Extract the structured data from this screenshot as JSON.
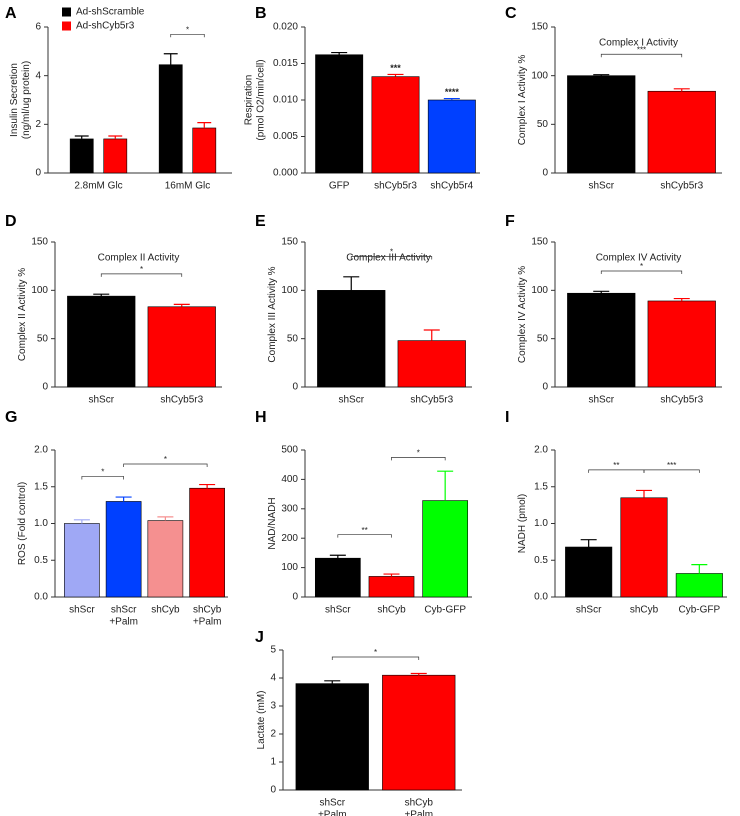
{
  "chart_data": [
    {
      "type": "bar",
      "panel": "A",
      "ylabel": [
        "Insulin Secretion",
        "(ng/ml/ug protein)"
      ],
      "categories": [
        "2.8mM Glc",
        "16mM Glc"
      ],
      "series": [
        {
          "name": "Ad-shScramble",
          "color": "#000000",
          "values": [
            1.4,
            4.45
          ],
          "errors": [
            0.12,
            0.45
          ]
        },
        {
          "name": "Ad-shCyb5r3",
          "color": "#ff0000",
          "values": [
            1.4,
            1.85
          ],
          "errors": [
            0.12,
            0.22
          ]
        }
      ],
      "ylim": [
        0,
        6
      ],
      "yticks": [
        0,
        2,
        4,
        6
      ],
      "legend": "upper left",
      "brackets": [
        {
          "between": [
            2,
            3
          ],
          "label": "*"
        }
      ]
    },
    {
      "type": "bar",
      "panel": "B",
      "ylabel": [
        "Respiration",
        "(pmol O2/min/cell)"
      ],
      "categories": [
        "GFP",
        "shCyb5r3",
        "shCyb5r4"
      ],
      "values": [
        0.0162,
        0.0132,
        0.01
      ],
      "errors": [
        0.0003,
        0.0003,
        0.0002
      ],
      "colors": [
        "#000000",
        "#ff0000",
        "#0040ff"
      ],
      "ylim": [
        0,
        0.02
      ],
      "yticks": [
        {
          "value": 0,
          "label": "0.000"
        },
        {
          "value": 0.005,
          "label": "0.005"
        },
        {
          "value": 0.01,
          "label": "0.010"
        },
        {
          "value": 0.015,
          "label": "0.015"
        },
        {
          "value": 0.02,
          "label": "0.020"
        }
      ],
      "bar_labels": [
        {
          "bar": 1,
          "label": "***"
        },
        {
          "bar": 2,
          "label": "****"
        }
      ]
    },
    {
      "type": "bar",
      "panel": "C",
      "title": "Complex I Activity",
      "ylabel": "Complex I Activity %",
      "categories": [
        "shScr",
        "shCyb5r3"
      ],
      "values": [
        100,
        84
      ],
      "errors": [
        1,
        2.5
      ],
      "colors": [
        "#000000",
        "#ff0000"
      ],
      "ylim": [
        0,
        150
      ],
      "yticks": [
        0,
        50,
        100,
        150
      ],
      "brackets": [
        {
          "between": [
            0,
            1
          ],
          "label": "***"
        }
      ]
    },
    {
      "type": "bar",
      "panel": "D",
      "title": "Complex II Activity",
      "ylabel": "Complex II Activity %",
      "categories": [
        "shScr",
        "shCyb5r3"
      ],
      "values": [
        94,
        83
      ],
      "errors": [
        2,
        2.5
      ],
      "colors": [
        "#000000",
        "#ff0000"
      ],
      "ylim": [
        0,
        150
      ],
      "yticks": [
        0,
        50,
        100,
        150
      ],
      "brackets": [
        {
          "between": [
            0,
            1
          ],
          "label": "*"
        }
      ]
    },
    {
      "type": "bar",
      "panel": "E",
      "title": "Complex III Activity",
      "ylabel": "Complex III Activity %",
      "categories": [
        "shScr",
        "shCyb5r3"
      ],
      "values": [
        100,
        48
      ],
      "errors": [
        14,
        11
      ],
      "colors": [
        "#000000",
        "#ff0000"
      ],
      "ylim": [
        0,
        150
      ],
      "yticks": [
        0,
        50,
        100,
        150
      ],
      "brackets": [
        {
          "between": [
            0,
            1
          ],
          "label": "*"
        }
      ]
    },
    {
      "type": "bar",
      "panel": "F",
      "title": "Complex IV Activity",
      "ylabel": "Complex IV Activity %",
      "categories": [
        "shScr",
        "shCyb5r3"
      ],
      "values": [
        97,
        89
      ],
      "errors": [
        2,
        2.5
      ],
      "colors": [
        "#000000",
        "#ff0000"
      ],
      "ylim": [
        0,
        150
      ],
      "yticks": [
        0,
        50,
        100,
        150
      ],
      "brackets": [
        {
          "between": [
            0,
            1
          ],
          "label": "*"
        }
      ]
    },
    {
      "type": "bar",
      "panel": "G",
      "ylabel": "ROS (Fold control)",
      "categories": [
        "shScr",
        [
          "shScr",
          "+Palm"
        ],
        "shCyb",
        [
          "shCyb",
          "+Palm"
        ]
      ],
      "values": [
        1.0,
        1.3,
        1.04,
        1.48
      ],
      "errors": [
        0.05,
        0.06,
        0.05,
        0.05
      ],
      "colors": [
        "#9fa8f5",
        "#0040ff",
        "#f59090",
        "#ff0000"
      ],
      "ylim": [
        0,
        2
      ],
      "yticks": [
        {
          "value": 0,
          "label": "0.0"
        },
        {
          "value": 0.5,
          "label": "0.5"
        },
        {
          "value": 1,
          "label": "1.0"
        },
        {
          "value": 1.5,
          "label": "1.5"
        },
        {
          "value": 2,
          "label": "2.0"
        }
      ],
      "brackets": [
        {
          "between": [
            0,
            1
          ],
          "label": "*"
        },
        {
          "between": [
            1,
            3
          ],
          "label": "*"
        }
      ]
    },
    {
      "type": "bar",
      "panel": "H",
      "ylabel": "NAD/NADH",
      "categories": [
        "shScr",
        "shCyb",
        "Cyb-GFP"
      ],
      "values": [
        132,
        70,
        328
      ],
      "errors": [
        10,
        8,
        100
      ],
      "colors": [
        "#000000",
        "#ff0000",
        "#00ff00"
      ],
      "ylim": [
        0,
        500
      ],
      "yticks": [
        0,
        100,
        200,
        300,
        400,
        500
      ],
      "brackets": [
        {
          "between": [
            0,
            1
          ],
          "label": "**"
        },
        {
          "between": [
            1,
            2
          ],
          "label": "*"
        }
      ]
    },
    {
      "type": "bar",
      "panel": "I",
      "ylabel": "NADH (pmol)",
      "categories": [
        "shScr",
        "shCyb",
        "Cyb-GFP"
      ],
      "values": [
        0.68,
        1.35,
        0.32
      ],
      "errors": [
        0.1,
        0.1,
        0.12
      ],
      "colors": [
        "#000000",
        "#ff0000",
        "#00ff00"
      ],
      "ylim": [
        0,
        2
      ],
      "yticks": [
        {
          "value": 0,
          "label": "0.0"
        },
        {
          "value": 0.5,
          "label": "0.5"
        },
        {
          "value": 1,
          "label": "1.0"
        },
        {
          "value": 1.5,
          "label": "1.5"
        },
        {
          "value": 2,
          "label": "2.0"
        }
      ],
      "brackets": [
        {
          "between": [
            0,
            1
          ],
          "label": "**"
        },
        {
          "between": [
            1,
            2
          ],
          "label": "***"
        }
      ]
    },
    {
      "type": "bar",
      "panel": "J",
      "ylabel": "Lactate (mM)",
      "categories": [
        [
          "shScr",
          "+Palm"
        ],
        [
          "shCyb",
          "+Palm"
        ]
      ],
      "values": [
        3.8,
        4.1
      ],
      "errors": [
        0.1,
        0.06
      ],
      "colors": [
        "#000000",
        "#ff0000"
      ],
      "ylim": [
        0,
        5
      ],
      "yticks": [
        0,
        1,
        2,
        3,
        4,
        5
      ],
      "brackets": [
        {
          "between": [
            0,
            1
          ],
          "label": "*"
        }
      ]
    }
  ]
}
